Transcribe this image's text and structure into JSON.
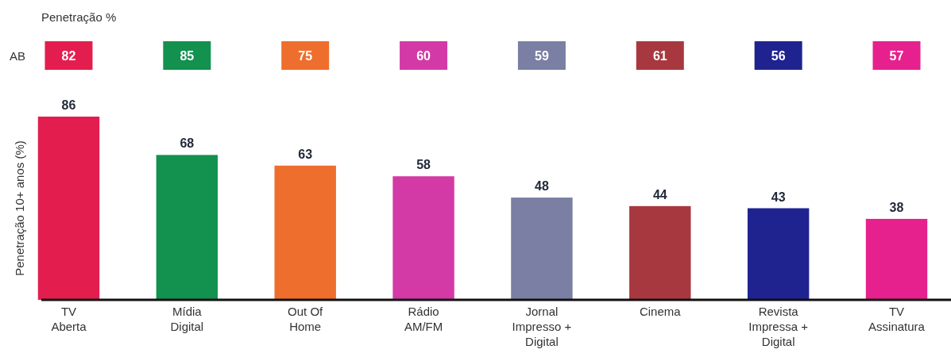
{
  "chart_data": [
    {
      "type": "heatmap",
      "title": "Penetração %",
      "categories": [
        null,
        null,
        null,
        null,
        null,
        null,
        null,
        null
      ],
      "y_categories": [
        "AB"
      ],
      "cells": [
        [
          82,
          85,
          75,
          60,
          59,
          61,
          56,
          57
        ]
      ],
      "colors": [
        "#e31e4f",
        "#12914f",
        "#ee6e2d",
        "#d33aa6",
        "#7a7fa3",
        "#a8383f",
        "#1f2390",
        "#e6218e"
      ],
      "data_labels": true
    },
    {
      "type": "bar",
      "ylabel": "Penetração 10+ anos (%)",
      "categories": [
        "TV\nAberta",
        "Mídia\nDigital",
        "Out Of\nHome",
        "Rádio\nAM/FM",
        "Jornal\nImpresso +\nDigital",
        "Cinema",
        "Revista\nImpressa +\nDigital",
        "TV\nAssinatura"
      ],
      "colors": [
        "#e31e4f",
        "#12914f",
        "#ee6e2d",
        "#d33aa6",
        "#7a7fa3",
        "#a8383f",
        "#1f2390",
        "#e6218e"
      ],
      "values": [
        86,
        68,
        63,
        58,
        48,
        44,
        43,
        38
      ],
      "data_labels": true,
      "tick_labels": "x"
    }
  ]
}
